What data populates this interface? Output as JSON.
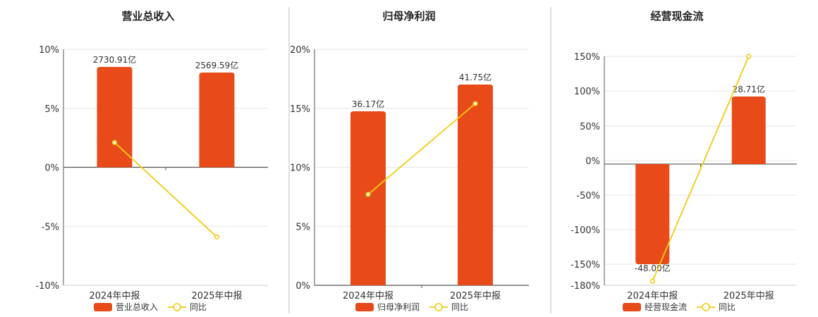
{
  "chart_data": [
    {
      "type": "bar",
      "title": "营业总收入",
      "categories": [
        "2024年中报",
        "2025年中报"
      ],
      "bar_labels": [
        "2730.91亿",
        "2569.59亿"
      ],
      "bar_values": [
        2730.91,
        2569.59
      ],
      "bar_unit": "亿",
      "line_values": [
        2.1,
        -5.9
      ],
      "yticks": [
        "10%",
        "5%",
        "0%",
        "-5%",
        "-10%"
      ],
      "ylim": [
        -10,
        10
      ],
      "legend": [
        "营业总收入",
        "同比"
      ]
    },
    {
      "type": "bar",
      "title": "归母净利润",
      "categories": [
        "2024年中报",
        "2025年中报"
      ],
      "bar_labels": [
        "36.17亿",
        "41.75亿"
      ],
      "bar_values": [
        36.17,
        41.75
      ],
      "bar_unit": "亿",
      "line_values": [
        7.7,
        15.4
      ],
      "yticks": [
        "20%",
        "15%",
        "10%",
        "5%",
        "0%"
      ],
      "ylim": [
        0,
        20
      ],
      "legend": [
        "归母净利润",
        "同比"
      ]
    },
    {
      "type": "bar",
      "title": "经营现金流",
      "categories": [
        "2024年中报",
        "2025年中报"
      ],
      "bar_labels": [
        "-48.00亿",
        "28.71亿"
      ],
      "bar_values": [
        -48.0,
        28.71
      ],
      "bar_unit": "亿",
      "line_values": [
        -174,
        160
      ],
      "yticks": [
        "150%",
        "100%",
        "50%",
        "0%",
        "-50%",
        "-100%",
        "-150%",
        "-180%"
      ],
      "ylim": [
        -180,
        160
      ],
      "legend": [
        "经营现金流",
        "同比"
      ]
    }
  ],
  "colors": {
    "bar": "#e84a1a",
    "line": "#f2cc0f",
    "grid": "#e6e6e6",
    "axis": "#555555"
  }
}
